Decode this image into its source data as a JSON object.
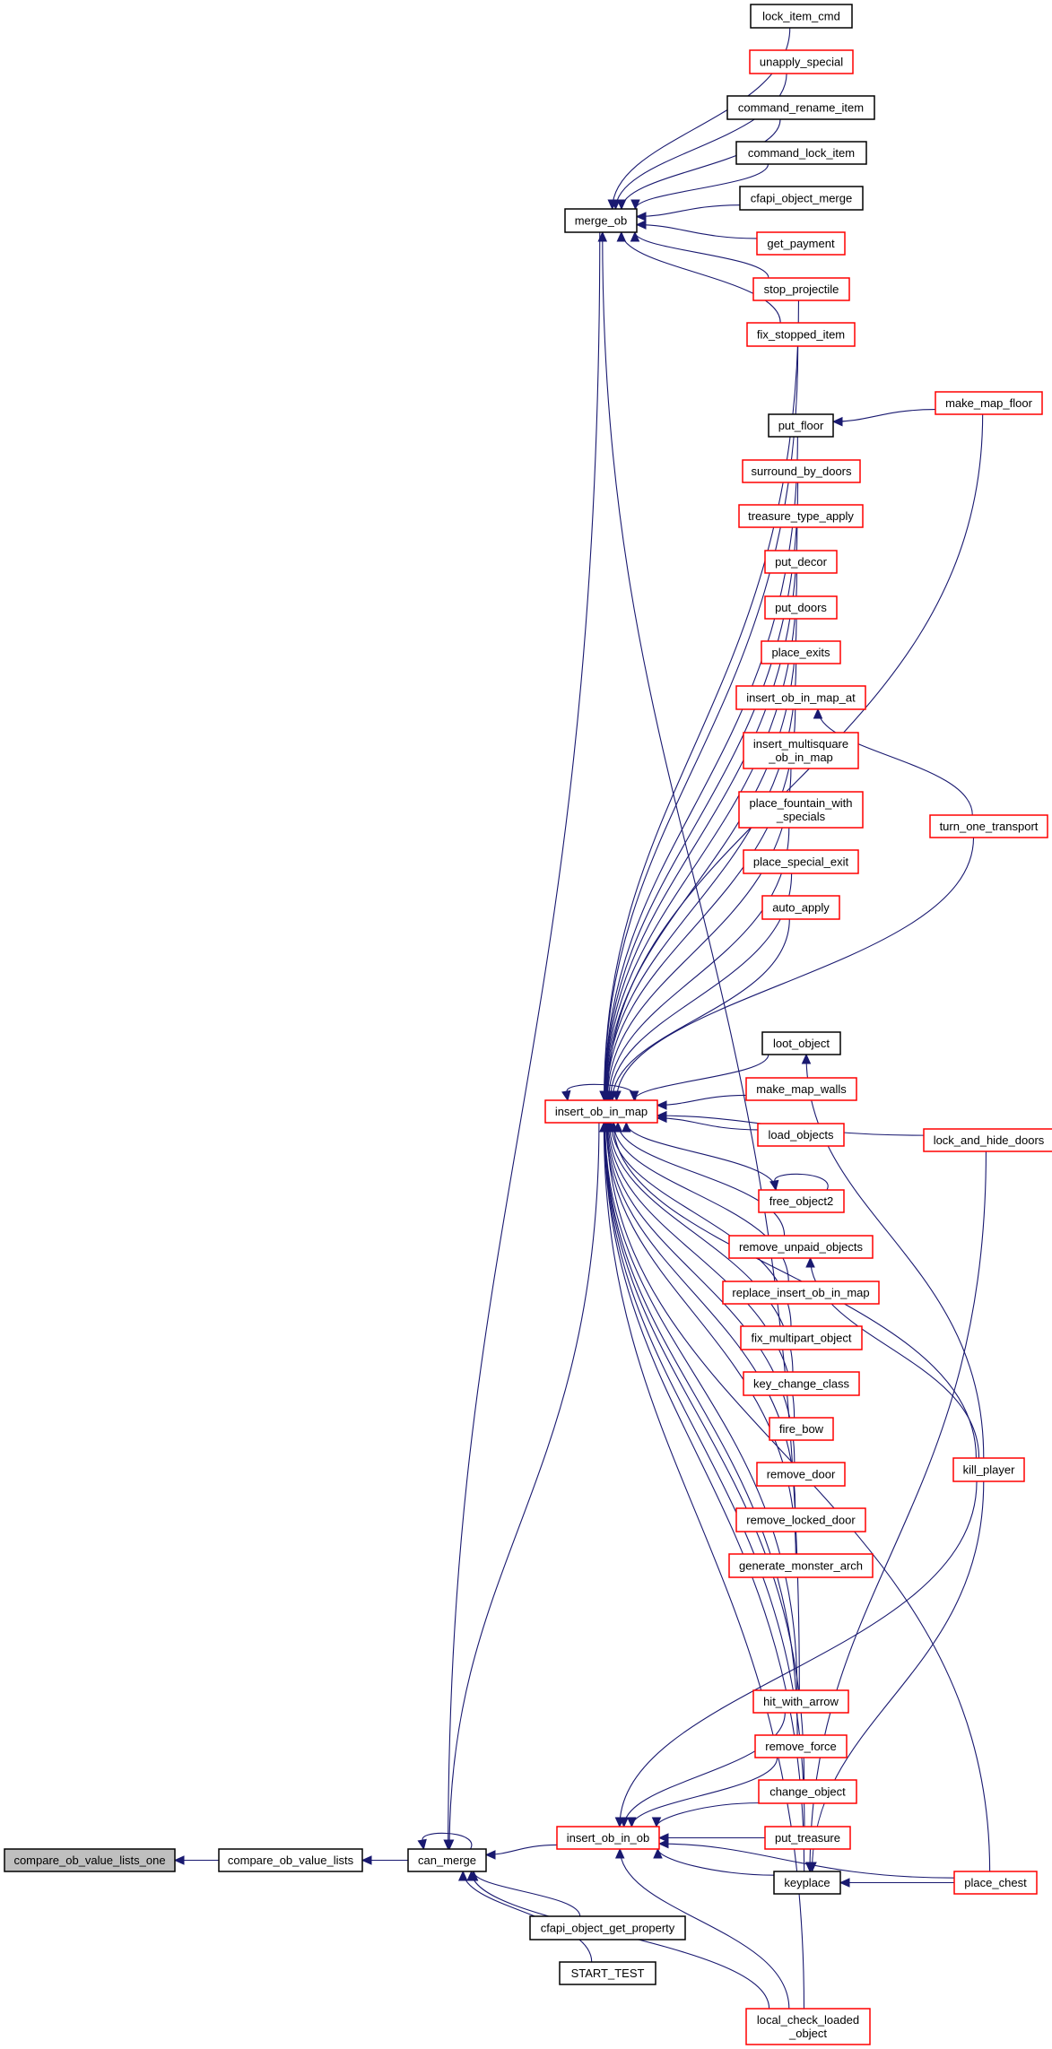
{
  "colors": {
    "edge": "#191970",
    "red_border": "#ff0000",
    "black_border": "#000000",
    "root_fill": "#bfbfbf"
  },
  "nodes": [
    {
      "id": "cmp_one",
      "lines": [
        "compare_ob_value_lists_one"
      ],
      "style": "root"
    },
    {
      "id": "cmp",
      "lines": [
        "compare_ob_value_lists"
      ],
      "style": "black"
    },
    {
      "id": "can_merge",
      "lines": [
        "can_merge"
      ],
      "style": "black"
    },
    {
      "id": "merge_ob",
      "lines": [
        "merge_ob"
      ],
      "style": "black"
    },
    {
      "id": "insert_ob_in_map",
      "lines": [
        "insert_ob_in_map"
      ],
      "style": "red"
    },
    {
      "id": "insert_ob_in_ob",
      "lines": [
        "insert_ob_in_ob"
      ],
      "style": "red"
    },
    {
      "id": "cfapi_object_get_property",
      "lines": [
        "cfapi_object_get_property"
      ],
      "style": "black"
    },
    {
      "id": "START_TEST",
      "lines": [
        "START_TEST"
      ],
      "style": "black"
    },
    {
      "id": "lock_item_cmd",
      "lines": [
        "lock_item_cmd"
      ],
      "style": "black"
    },
    {
      "id": "unapply_special",
      "lines": [
        "unapply_special"
      ],
      "style": "red"
    },
    {
      "id": "command_rename_item",
      "lines": [
        "command_rename_item"
      ],
      "style": "black"
    },
    {
      "id": "command_lock_item",
      "lines": [
        "command_lock_item"
      ],
      "style": "black"
    },
    {
      "id": "cfapi_object_merge",
      "lines": [
        "cfapi_object_merge"
      ],
      "style": "black"
    },
    {
      "id": "get_payment",
      "lines": [
        "get_payment"
      ],
      "style": "red"
    },
    {
      "id": "stop_projectile",
      "lines": [
        "stop_projectile"
      ],
      "style": "red"
    },
    {
      "id": "fix_stopped_item",
      "lines": [
        "fix_stopped_item"
      ],
      "style": "red"
    },
    {
      "id": "make_map_floor",
      "lines": [
        "make_map_floor"
      ],
      "style": "red"
    },
    {
      "id": "put_floor",
      "lines": [
        "put_floor"
      ],
      "style": "black"
    },
    {
      "id": "surround_by_doors",
      "lines": [
        "surround_by_doors"
      ],
      "style": "red"
    },
    {
      "id": "treasure_type_apply",
      "lines": [
        "treasure_type_apply"
      ],
      "style": "red"
    },
    {
      "id": "put_decor",
      "lines": [
        "put_decor"
      ],
      "style": "red"
    },
    {
      "id": "put_doors",
      "lines": [
        "put_doors"
      ],
      "style": "red"
    },
    {
      "id": "place_exits",
      "lines": [
        "place_exits"
      ],
      "style": "red"
    },
    {
      "id": "insert_ob_in_map_at",
      "lines": [
        "insert_ob_in_map_at"
      ],
      "style": "red"
    },
    {
      "id": "insert_multisquare_ob_in_map",
      "lines": [
        "insert_multisquare",
        "_ob_in_map"
      ],
      "style": "red"
    },
    {
      "id": "place_fountain_with_specials",
      "lines": [
        "place_fountain_with",
        "_specials"
      ],
      "style": "red"
    },
    {
      "id": "place_special_exit",
      "lines": [
        "place_special_exit"
      ],
      "style": "red"
    },
    {
      "id": "auto_apply",
      "lines": [
        "auto_apply"
      ],
      "style": "red"
    },
    {
      "id": "turn_one_transport",
      "lines": [
        "turn_one_transport"
      ],
      "style": "red"
    },
    {
      "id": "loot_object",
      "lines": [
        "loot_object"
      ],
      "style": "black"
    },
    {
      "id": "make_map_walls",
      "lines": [
        "make_map_walls"
      ],
      "style": "red"
    },
    {
      "id": "load_objects",
      "lines": [
        "load_objects"
      ],
      "style": "red"
    },
    {
      "id": "lock_and_hide_doors",
      "lines": [
        "lock_and_hide_doors"
      ],
      "style": "red"
    },
    {
      "id": "free_object2",
      "lines": [
        "free_object2"
      ],
      "style": "red"
    },
    {
      "id": "remove_unpaid_objects",
      "lines": [
        "remove_unpaid_objects"
      ],
      "style": "red"
    },
    {
      "id": "replace_insert_ob_in_map",
      "lines": [
        "replace_insert_ob_in_map"
      ],
      "style": "red"
    },
    {
      "id": "fix_multipart_object",
      "lines": [
        "fix_multipart_object"
      ],
      "style": "red"
    },
    {
      "id": "key_change_class",
      "lines": [
        "key_change_class"
      ],
      "style": "red"
    },
    {
      "id": "fire_bow",
      "lines": [
        "fire_bow"
      ],
      "style": "red"
    },
    {
      "id": "remove_door",
      "lines": [
        "remove_door"
      ],
      "style": "red"
    },
    {
      "id": "remove_locked_door",
      "lines": [
        "remove_locked_door"
      ],
      "style": "red"
    },
    {
      "id": "generate_monster_arch",
      "lines": [
        "generate_monster_arch"
      ],
      "style": "red"
    },
    {
      "id": "kill_player",
      "lines": [
        "kill_player"
      ],
      "style": "red"
    },
    {
      "id": "hit_with_arrow",
      "lines": [
        "hit_with_arrow"
      ],
      "style": "red"
    },
    {
      "id": "remove_force",
      "lines": [
        "remove_force"
      ],
      "style": "red"
    },
    {
      "id": "change_object",
      "lines": [
        "change_object"
      ],
      "style": "red"
    },
    {
      "id": "put_treasure",
      "lines": [
        "put_treasure"
      ],
      "style": "red"
    },
    {
      "id": "keyplace",
      "lines": [
        "keyplace"
      ],
      "style": "black"
    },
    {
      "id": "place_chest",
      "lines": [
        "place_chest"
      ],
      "style": "red"
    },
    {
      "id": "local_check_loaded_object",
      "lines": [
        "local_check_loaded",
        "_object"
      ],
      "style": "red"
    }
  ],
  "edges": [
    [
      "cmp",
      "cmp_one"
    ],
    [
      "can_merge",
      "cmp"
    ],
    [
      "can_merge",
      "can_merge"
    ],
    [
      "merge_ob",
      "can_merge"
    ],
    [
      "insert_ob_in_map",
      "can_merge"
    ],
    [
      "insert_ob_in_ob",
      "can_merge"
    ],
    [
      "cfapi_object_get_property",
      "can_merge"
    ],
    [
      "START_TEST",
      "can_merge"
    ],
    [
      "local_check_loaded_object",
      "can_merge"
    ],
    [
      "lock_item_cmd",
      "merge_ob"
    ],
    [
      "unapply_special",
      "merge_ob"
    ],
    [
      "command_rename_item",
      "merge_ob"
    ],
    [
      "command_lock_item",
      "merge_ob"
    ],
    [
      "cfapi_object_merge",
      "merge_ob"
    ],
    [
      "get_payment",
      "merge_ob"
    ],
    [
      "stop_projectile",
      "merge_ob"
    ],
    [
      "fix_stopped_item",
      "merge_ob"
    ],
    [
      "hit_with_arrow",
      "merge_ob"
    ],
    [
      "insert_ob_in_map",
      "insert_ob_in_map"
    ],
    [
      "stop_projectile",
      "insert_ob_in_map"
    ],
    [
      "fix_stopped_item",
      "insert_ob_in_map"
    ],
    [
      "make_map_floor",
      "insert_ob_in_map"
    ],
    [
      "put_floor",
      "insert_ob_in_map"
    ],
    [
      "surround_by_doors",
      "insert_ob_in_map"
    ],
    [
      "treasure_type_apply",
      "insert_ob_in_map"
    ],
    [
      "put_decor",
      "insert_ob_in_map"
    ],
    [
      "put_doors",
      "insert_ob_in_map"
    ],
    [
      "place_exits",
      "insert_ob_in_map"
    ],
    [
      "insert_ob_in_map_at",
      "insert_ob_in_map"
    ],
    [
      "insert_multisquare_ob_in_map",
      "insert_ob_in_map"
    ],
    [
      "place_fountain_with_specials",
      "insert_ob_in_map"
    ],
    [
      "place_special_exit",
      "insert_ob_in_map"
    ],
    [
      "auto_apply",
      "insert_ob_in_map"
    ],
    [
      "turn_one_transport",
      "insert_ob_in_map"
    ],
    [
      "lock_and_hide_doors",
      "insert_ob_in_map"
    ],
    [
      "loot_object",
      "insert_ob_in_map"
    ],
    [
      "make_map_walls",
      "insert_ob_in_map"
    ],
    [
      "load_objects",
      "insert_ob_in_map"
    ],
    [
      "free_object2",
      "insert_ob_in_map"
    ],
    [
      "remove_unpaid_objects",
      "insert_ob_in_map"
    ],
    [
      "replace_insert_ob_in_map",
      "insert_ob_in_map"
    ],
    [
      "fix_multipart_object",
      "insert_ob_in_map"
    ],
    [
      "key_change_class",
      "insert_ob_in_map"
    ],
    [
      "fire_bow",
      "insert_ob_in_map"
    ],
    [
      "remove_door",
      "insert_ob_in_map"
    ],
    [
      "remove_locked_door",
      "insert_ob_in_map"
    ],
    [
      "generate_monster_arch",
      "insert_ob_in_map"
    ],
    [
      "kill_player",
      "insert_ob_in_map"
    ],
    [
      "place_chest",
      "insert_ob_in_map"
    ],
    [
      "hit_with_arrow",
      "insert_ob_in_map"
    ],
    [
      "remove_force",
      "insert_ob_in_map"
    ],
    [
      "change_object",
      "insert_ob_in_map"
    ],
    [
      "put_treasure",
      "insert_ob_in_map"
    ],
    [
      "keyplace",
      "insert_ob_in_map"
    ],
    [
      "local_check_loaded_object",
      "insert_ob_in_map"
    ],
    [
      "make_map_floor",
      "put_floor"
    ],
    [
      "turn_one_transport",
      "insert_ob_in_map_at"
    ],
    [
      "kill_player",
      "loot_object"
    ],
    [
      "kill_player",
      "remove_unpaid_objects"
    ],
    [
      "free_object2",
      "free_object2"
    ],
    [
      "hit_with_arrow",
      "insert_ob_in_ob"
    ],
    [
      "remove_force",
      "insert_ob_in_ob"
    ],
    [
      "change_object",
      "insert_ob_in_ob"
    ],
    [
      "put_treasure",
      "insert_ob_in_ob"
    ],
    [
      "keyplace",
      "insert_ob_in_ob"
    ],
    [
      "local_check_loaded_object",
      "insert_ob_in_ob"
    ],
    [
      "place_chest",
      "insert_ob_in_ob"
    ],
    [
      "kill_player",
      "insert_ob_in_ob"
    ],
    [
      "place_chest",
      "keyplace"
    ],
    [
      "lock_and_hide_doors",
      "keyplace"
    ],
    [
      "kill_player",
      "keyplace"
    ]
  ]
}
